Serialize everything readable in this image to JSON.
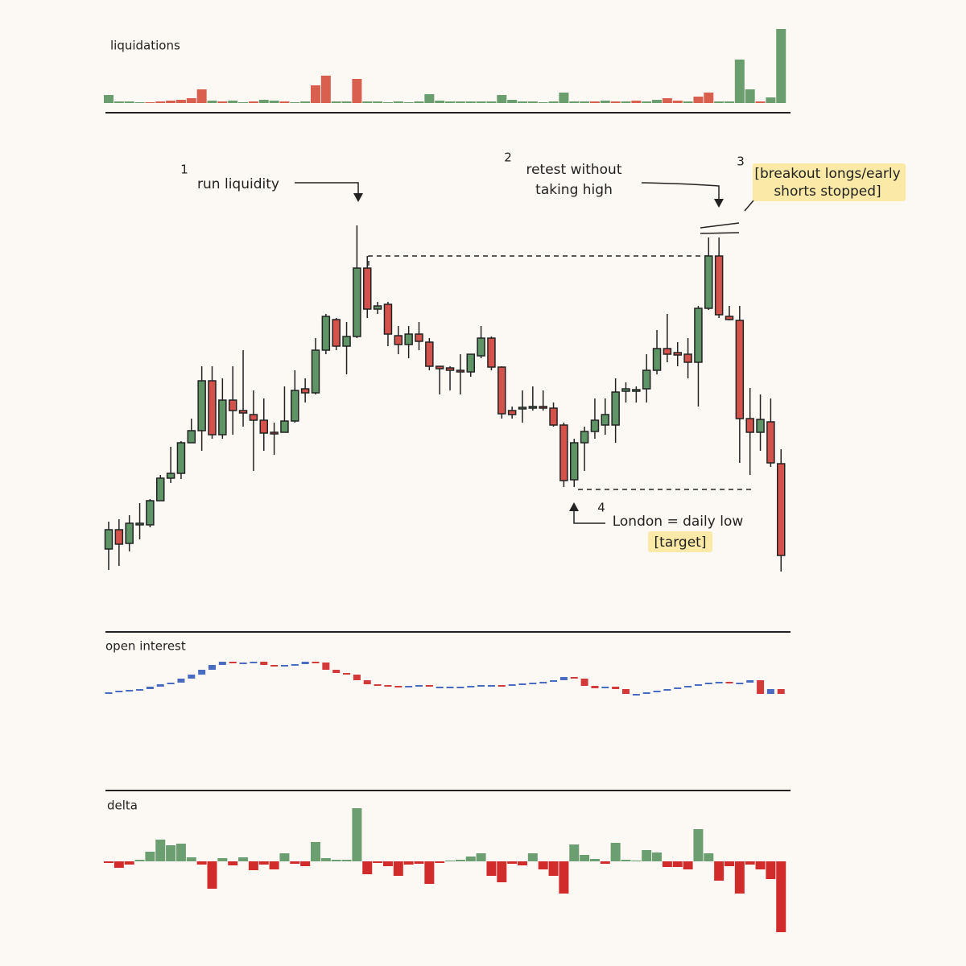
{
  "chart_data": [
    {
      "type": "bar",
      "title": "liquidations",
      "values": [
        10,
        2,
        2,
        1,
        1,
        2,
        3,
        4,
        6,
        17,
        3,
        2,
        3,
        1,
        2,
        4,
        3,
        2,
        1,
        2,
        22,
        34,
        2,
        2,
        30,
        2,
        2,
        1,
        2,
        1,
        2,
        11,
        3,
        2,
        2,
        2,
        2,
        2,
        10,
        4,
        2,
        2,
        1,
        2,
        13,
        2,
        2,
        2,
        3,
        2,
        2,
        3,
        2,
        4,
        6,
        3,
        2,
        8,
        13,
        2,
        2,
        54,
        17,
        2,
        7,
        92
      ],
      "colors": [
        "#6a9e6e",
        "#6a9e6e",
        "#6a9e6e",
        "#6a9e6e",
        "#d9604e",
        "#d9604e",
        "#d9604e",
        "#d9604e",
        "#d9604e",
        "#d9604e",
        "#6a9e6e",
        "#d9604e",
        "#6a9e6e",
        "#6a9e6e",
        "#d9604e",
        "#6a9e6e",
        "#6a9e6e",
        "#d9604e",
        "#6a9e6e",
        "#6a9e6e",
        "#d9604e",
        "#d9604e",
        "#6a9e6e",
        "#6a9e6e",
        "#d9604e",
        "#6a9e6e",
        "#6a9e6e",
        "#6a9e6e",
        "#6a9e6e",
        "#6a9e6e",
        "#6a9e6e",
        "#6a9e6e",
        "#6a9e6e",
        "#6a9e6e",
        "#6a9e6e",
        "#6a9e6e",
        "#6a9e6e",
        "#6a9e6e",
        "#6a9e6e",
        "#6a9e6e",
        "#6a9e6e",
        "#6a9e6e",
        "#6a9e6e",
        "#6a9e6e",
        "#6a9e6e",
        "#6a9e6e",
        "#6a9e6e",
        "#d9604e",
        "#6a9e6e",
        "#d9604e",
        "#6a9e6e",
        "#d9604e",
        "#6a9e6e",
        "#6a9e6e",
        "#d9604e",
        "#d9604e",
        "#6a9e6e",
        "#d9604e",
        "#d9604e",
        "#6a9e6e",
        "#6a9e6e",
        "#6a9e6e",
        "#6a9e6e",
        "#d9604e",
        "#6a9e6e",
        "#6a9e6e"
      ],
      "ylim": [
        0,
        95
      ]
    },
    {
      "type": "candlestick",
      "open": [
        38,
        62,
        45,
        68,
        68,
        98,
        126,
        132,
        170,
        185,
        247,
        180,
        223,
        210,
        205,
        198,
        183,
        183,
        197,
        237,
        232,
        285,
        323,
        290,
        302,
        387,
        336,
        342,
        303,
        292,
        305,
        295,
        265,
        263,
        260,
        258,
        278,
        300,
        264,
        210,
        212,
        214,
        215,
        213,
        192,
        124,
        170,
        184,
        192,
        192,
        234,
        234,
        237,
        260,
        287,
        282,
        280,
        270,
        337,
        402,
        327,
        322,
        200,
        183,
        196,
        144
      ],
      "high": [
        72,
        75,
        80,
        95,
        100,
        130,
        165,
        172,
        200,
        265,
        265,
        250,
        265,
        285,
        235,
        225,
        195,
        240,
        260,
        250,
        300,
        330,
        325,
        320,
        440,
        402,
        345,
        345,
        315,
        315,
        320,
        300,
        265,
        265,
        280,
        280,
        315,
        302,
        265,
        215,
        235,
        240,
        235,
        220,
        195,
        175,
        190,
        225,
        225,
        250,
        245,
        240,
        280,
        310,
        330,
        295,
        300,
        340,
        425,
        425,
        340,
        340,
        238,
        230,
        225,
        162
      ],
      "low": [
        12,
        17,
        35,
        50,
        65,
        98,
        120,
        125,
        170,
        160,
        175,
        175,
        180,
        190,
        135,
        160,
        155,
        185,
        195,
        220,
        230,
        280,
        285,
        255,
        300,
        325,
        330,
        290,
        280,
        275,
        285,
        260,
        230,
        235,
        230,
        252,
        275,
        260,
        200,
        200,
        195,
        210,
        210,
        190,
        115,
        115,
        135,
        175,
        180,
        170,
        220,
        220,
        220,
        255,
        270,
        265,
        250,
        215,
        335,
        325,
        322,
        145,
        130,
        160,
        140,
        10
      ],
      "close": [
        62,
        44,
        70,
        70,
        98,
        126,
        132,
        170,
        185,
        247,
        180,
        223,
        210,
        207,
        198,
        182,
        182,
        197,
        235,
        232,
        285,
        327,
        290,
        302,
        387,
        336,
        340,
        305,
        292,
        305,
        296,
        265,
        262,
        260,
        258,
        280,
        300,
        264,
        206,
        205,
        214,
        215,
        214,
        192,
        123,
        170,
        184,
        198,
        205,
        233,
        237,
        236,
        260,
        287,
        280,
        279,
        270,
        337,
        402,
        329,
        323,
        200,
        183,
        199,
        145,
        30
      ],
      "up_color": "#5f9466",
      "down_color": "#d4524c",
      "outline": "#222222",
      "ylim": [
        0,
        450
      ],
      "annotations": [
        {
          "number": 1,
          "lines": [
            "run liquidity"
          ]
        },
        {
          "number": 2,
          "lines": [
            "retest without",
            "taking high"
          ]
        },
        {
          "number": 3,
          "lines": [
            "[breakout longs/early",
            "shorts stopped]"
          ]
        },
        {
          "number": 4,
          "lines": [
            "London = daily low",
            "[target]"
          ]
        }
      ]
    },
    {
      "type": "candlestick",
      "title": "open interest",
      "open": [
        38,
        40,
        42,
        43,
        44,
        47,
        50,
        52,
        57,
        62,
        68,
        74,
        78,
        77,
        77,
        78,
        74,
        73,
        74,
        75,
        78,
        77,
        68,
        64,
        62,
        55,
        50,
        49,
        48,
        47,
        48,
        49,
        47,
        47,
        47,
        47,
        48,
        49,
        49,
        48,
        50,
        51,
        52,
        53,
        55,
        59,
        57,
        48,
        45,
        47,
        44,
        38,
        38,
        40,
        42,
        44,
        46,
        48,
        50,
        52,
        53,
        52,
        52,
        55,
        38,
        44
      ],
      "close": [
        40,
        42,
        43,
        44,
        47,
        50,
        52,
        57,
        62,
        68,
        74,
        78,
        77,
        77,
        78,
        74,
        73,
        74,
        75,
        78,
        77,
        68,
        64,
        62,
        55,
        50,
        49,
        48,
        47,
        48,
        49,
        47,
        47,
        47,
        47,
        48,
        49,
        49,
        48,
        50,
        51,
        52,
        53,
        55,
        59,
        57,
        48,
        45,
        47,
        44,
        38,
        38,
        40,
        42,
        44,
        46,
        48,
        50,
        52,
        53,
        52,
        52,
        55,
        38,
        44,
        38
      ],
      "up_color": "#4a6cc0",
      "down_color": "#d43a3a",
      "ylim": [
        20,
        80
      ]
    },
    {
      "type": "bar",
      "title": "delta",
      "values": [
        -2,
        -8,
        -4,
        2,
        12,
        27,
        20,
        22,
        5,
        -4,
        -34,
        4,
        -5,
        5,
        -11,
        -4,
        -10,
        10,
        -3,
        -6,
        24,
        4,
        2,
        2,
        66,
        -16,
        -2,
        -6,
        -18,
        -4,
        -3,
        -28,
        -2,
        1,
        2,
        6,
        10,
        -18,
        -26,
        -3,
        -5,
        10,
        -10,
        -18,
        -40,
        21,
        8,
        3,
        -3,
        23,
        2,
        1,
        14,
        11,
        -7,
        -7,
        -10,
        40,
        10,
        -24,
        -6,
        -40,
        -4,
        -10,
        -22,
        -88
      ],
      "up_color": "#6b9e70",
      "down_color": "#d12b2b",
      "ylim": [
        -90,
        70
      ]
    }
  ]
}
